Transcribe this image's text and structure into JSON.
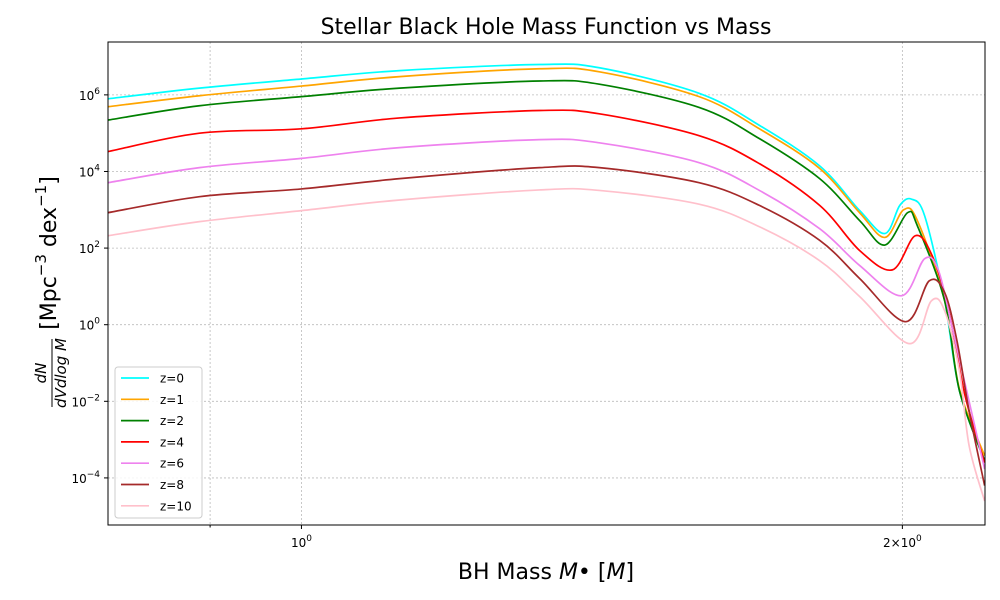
{
  "chart_data": {
    "type": "line",
    "title": "Stellar Black Hole Mass Function vs Mass",
    "xlabel": "BH Mass M• [M]",
    "ylabel": "dN/dVdlogM [Mpc^-3 dex^-1]",
    "xscale": "log",
    "yscale": "log",
    "xlim": [
      0.8,
      2.2
    ],
    "ylim": [
      5.9e-06,
      24000000.0
    ],
    "grid": true,
    "legend_placement": "lower-left",
    "x_ticks": [
      {
        "value": 1,
        "label": "10^0"
      },
      {
        "value": 2,
        "label": "2×10^0"
      }
    ],
    "y_ticks": [
      {
        "value": 1000000.0,
        "label": "10^6"
      },
      {
        "value": 10000.0,
        "label": "10^4"
      },
      {
        "value": 100.0,
        "label": "10^2"
      },
      {
        "value": 1,
        "label": "10^0"
      },
      {
        "value": 0.01,
        "label": "10^-2"
      },
      {
        "value": 0.0001,
        "label": "10^-4"
      }
    ],
    "series": [
      {
        "name": "z=0",
        "color": "#00ffff",
        "points": [
          [
            0.8,
            790000.0
          ],
          [
            0.889,
            1500000.0
          ],
          [
            1.0,
            2600000.0
          ],
          [
            1.12,
            4300000.0
          ],
          [
            1.316,
            6200000.0
          ],
          [
            1.41,
            5100000.0
          ],
          [
            1.582,
            1100000.0
          ],
          [
            1.696,
            160000.0
          ],
          [
            1.818,
            14000.0
          ],
          [
            1.904,
            950
          ],
          [
            1.96,
            240
          ],
          [
            1.994,
            1300
          ],
          [
            2.021,
            1900
          ],
          [
            2.052,
            700
          ],
          [
            2.1,
            4.2
          ],
          [
            2.136,
            0.019
          ],
          [
            2.199,
            0.00028
          ]
        ]
      },
      {
        "name": "z=1",
        "color": "#ffa500",
        "points": [
          [
            0.8,
            490000.0
          ],
          [
            0.889,
            950000.0
          ],
          [
            1.0,
            1700000.0
          ],
          [
            1.12,
            3000000.0
          ],
          [
            1.316,
            4800000.0
          ],
          [
            1.41,
            4000000.0
          ],
          [
            1.582,
            900000.0
          ],
          [
            1.696,
            130000.0
          ],
          [
            1.818,
            12000.0
          ],
          [
            1.904,
            830
          ],
          [
            1.96,
            190
          ],
          [
            2.003,
            1000
          ],
          [
            2.035,
            520
          ],
          [
            2.1,
            4.2
          ],
          [
            2.136,
            0.021
          ],
          [
            2.199,
            0.00038
          ]
        ]
      },
      {
        "name": "z=2",
        "color": "#008000",
        "points": [
          [
            0.8,
            220000.0
          ],
          [
            0.889,
            520000.0
          ],
          [
            1.0,
            900000.0
          ],
          [
            1.12,
            1500000.0
          ],
          [
            1.316,
            2300000.0
          ],
          [
            1.41,
            1900000.0
          ],
          [
            1.582,
            470000.0
          ],
          [
            1.696,
            72000.0
          ],
          [
            1.818,
            6500.0
          ],
          [
            1.904,
            520
          ],
          [
            1.96,
            120
          ],
          [
            2.012,
            840
          ],
          [
            2.035,
            380
          ],
          [
            2.1,
            4.2
          ],
          [
            2.136,
            0.019
          ],
          [
            2.199,
            0.00028
          ]
        ]
      },
      {
        "name": "z=4",
        "color": "#ff0000",
        "points": [
          [
            0.8,
            33000.0
          ],
          [
            0.889,
            100000.0
          ],
          [
            1.0,
            130000.0
          ],
          [
            1.12,
            250000.0
          ],
          [
            1.316,
            390000.0
          ],
          [
            1.41,
            320000.0
          ],
          [
            1.582,
            86000.0
          ],
          [
            1.696,
            16000.0
          ],
          [
            1.818,
            1300
          ],
          [
            1.904,
            86
          ],
          [
            1.977,
            27
          ],
          [
            2.03,
            210
          ],
          [
            2.07,
            63
          ],
          [
            2.11,
            2.3
          ],
          [
            2.15,
            0.014
          ],
          [
            2.199,
            0.00025
          ]
        ]
      },
      {
        "name": "z=6",
        "color": "#ee82ee",
        "points": [
          [
            0.8,
            5100.0
          ],
          [
            0.889,
            12600.0
          ],
          [
            1.0,
            22000.0
          ],
          [
            1.12,
            42000.0
          ],
          [
            1.316,
            68000.0
          ],
          [
            1.41,
            56000.0
          ],
          [
            1.582,
            17000.0
          ],
          [
            1.696,
            3200
          ],
          [
            1.818,
            320
          ],
          [
            1.904,
            35
          ],
          [
            1.998,
            5.7
          ],
          [
            2.052,
            53
          ],
          [
            2.085,
            26
          ],
          [
            2.12,
            0.7
          ],
          [
            2.16,
            0.01
          ],
          [
            2.199,
            0.00017
          ]
        ]
      },
      {
        "name": "z=8",
        "color": "#a52a2a",
        "points": [
          [
            0.8,
            840
          ],
          [
            0.889,
            2200
          ],
          [
            1.0,
            3500
          ],
          [
            1.12,
            6500
          ],
          [
            1.316,
            12600.0
          ],
          [
            1.41,
            12600.0
          ],
          [
            1.582,
            5100
          ],
          [
            1.696,
            1300
          ],
          [
            1.818,
            160
          ],
          [
            1.904,
            16
          ],
          [
            2.007,
            1.2
          ],
          [
            2.063,
            14
          ],
          [
            2.1,
            6.9
          ],
          [
            2.13,
            0.38
          ],
          [
            2.16,
            0.0056
          ],
          [
            2.199,
            6.3e-05
          ]
        ]
      },
      {
        "name": "z=10",
        "color": "#ffc0cb",
        "points": [
          [
            0.8,
            210
          ],
          [
            0.889,
            490
          ],
          [
            1.0,
            950
          ],
          [
            1.12,
            1800
          ],
          [
            1.316,
            3300
          ],
          [
            1.41,
            3200
          ],
          [
            1.582,
            1400
          ],
          [
            1.696,
            360
          ],
          [
            1.818,
            47
          ],
          [
            1.904,
            5.4
          ],
          [
            2.017,
            0.32
          ],
          [
            2.068,
            4.2
          ],
          [
            2.1,
            2.3
          ],
          [
            2.136,
            0.063
          ],
          [
            2.16,
            0.0007
          ],
          [
            2.199,
            2.5e-05
          ]
        ]
      }
    ]
  }
}
